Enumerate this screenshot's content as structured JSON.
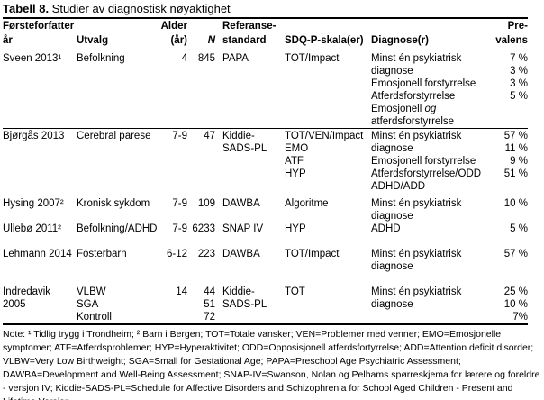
{
  "title": {
    "label": "Tabell 8.",
    "text": " Studier av diagnostisk nøyaktighet"
  },
  "table": {
    "columns": [
      {
        "key": "forsteforfatter_ar",
        "align": "left"
      },
      {
        "key": "utvalg",
        "align": "left"
      },
      {
        "key": "alder_ar",
        "align": "right"
      },
      {
        "key": "n",
        "align": "right"
      },
      {
        "key": "referansestandard",
        "align": "left"
      },
      {
        "key": "sdq_p_skala",
        "align": "left"
      },
      {
        "key": "diagnose",
        "align": "left"
      },
      {
        "key": "prevalens",
        "align": "right"
      }
    ],
    "header_rows": [
      {
        "cells": [
          "Førsteforfatter",
          "",
          "Alder",
          "",
          "Referanse-",
          "",
          "",
          "Pre-"
        ]
      },
      {
        "cells": [
          "år",
          "Utvalg",
          "(år)",
          "N",
          "standard",
          "SDQ-P-skala(er)",
          "Diagnose(r)",
          "valens"
        ]
      }
    ],
    "rows": [
      {
        "cells": [
          "Sveen 2013¹",
          "Befolkning",
          "4",
          "845",
          "PAPA",
          "TOT/Impact",
          "Minst én psykiatrisk",
          "7 %"
        ]
      },
      {
        "cells": [
          "",
          "",
          "",
          "",
          "",
          "",
          "diagnose",
          "3 %"
        ]
      },
      {
        "cells": [
          "",
          "",
          "",
          "",
          "",
          "",
          "Emosjonell forstyrrelse",
          "3 %"
        ]
      },
      {
        "cells": [
          "",
          "",
          "",
          "",
          "",
          "",
          "Atferdsforstyrrelse",
          "5 %"
        ]
      },
      {
        "cells": [
          "",
          "",
          "",
          "",
          "",
          "",
          {
            "segments": [
              {
                "text": "Emosjonell "
              },
              {
                "text": "og",
                "italic": true
              }
            ]
          },
          ""
        ]
      },
      {
        "cells": [
          "",
          "",
          "",
          "",
          "",
          "",
          "atferdsforstyrrelse",
          ""
        ]
      },
      {
        "rule": true,
        "cells": [
          "Bjørgås 2013",
          "Cerebral parese",
          "7-9",
          "47",
          "Kiddie-",
          "TOT/VEN/Impact",
          "Minst én psykiatrisk",
          "57 %"
        ]
      },
      {
        "cells": [
          "",
          "",
          "",
          "",
          "SADS-PL",
          "EMO",
          "diagnose",
          "11 %"
        ]
      },
      {
        "cells": [
          "",
          "",
          "",
          "",
          "",
          "ATF",
          "Emosjonell forstyrrelse",
          "9 %"
        ]
      },
      {
        "cells": [
          "",
          "",
          "",
          "",
          "",
          "HYP",
          "Atferdsforstyrrelse/ODD",
          "51 %"
        ]
      },
      {
        "cells": [
          "",
          "",
          "",
          "",
          "",
          "",
          "ADHD/ADD",
          ""
        ]
      },
      {
        "gap_sm": true,
        "cells": [
          "Hysing 2007²",
          "Kronisk sykdom",
          "7-9",
          "109",
          "DAWBA",
          "Algoritme",
          "Minst én psykiatrisk",
          "10 %"
        ]
      },
      {
        "cells": [
          "",
          "",
          "",
          "",
          "",
          "",
          "diagnose",
          ""
        ]
      },
      {
        "cells": [
          "Ullebø 2011²",
          "Befolkning/ADHD",
          "7-9",
          "6233",
          "SNAP IV",
          "HYP",
          "ADHD",
          "5 %"
        ]
      },
      {
        "gap": true,
        "cells": [
          "Lehmann 2014",
          "Fosterbarn",
          "6-12",
          "223",
          "DAWBA",
          "TOT/Impact",
          "Minst én psykiatrisk",
          "57 %"
        ]
      },
      {
        "cells": [
          "",
          "",
          "",
          "",
          "",
          "",
          "diagnose",
          ""
        ]
      },
      {
        "gap": true,
        "cells": [
          "Indredavik",
          "VLBW",
          "14",
          "44",
          "Kiddie-",
          "TOT",
          "Minst én psykiatrisk",
          "25 %"
        ]
      },
      {
        "cells": [
          "2005",
          "SGA",
          "",
          "51",
          "SADS-PL",
          "",
          "diagnose",
          "10 %"
        ]
      },
      {
        "cells": [
          "",
          "Kontroll",
          "",
          "72",
          "",
          "",
          "",
          "7%"
        ]
      }
    ]
  },
  "note": {
    "text": "Note: ¹ Tidlig trygg i Trondheim; ² Barn i Bergen; TOT=Totale vansker; VEN=Problemer med venner; EMO=Emosjonelle symptomer; ATF=Atferdsproblemer; HYP=Hyperaktivitet; ODD=Opposisjonell atferdsfortyrrelse; ADD=Attention deficit disorder; VLBW=Very Low Birthweight; SGA=Small for Gestational Age; PAPA=Preschool Age Psychiatric Assessment; DAWBA=Development and Well-Being Assessment; SNAP-IV=Swanson, Nolan og Pelhams spørreskjema for lærere og foreldre - versjon IV; Kiddie-SADS-PL=Schedule for Affective Disorders and Schizophrenia for School Aged Children - Present and Lifetime Version"
  }
}
